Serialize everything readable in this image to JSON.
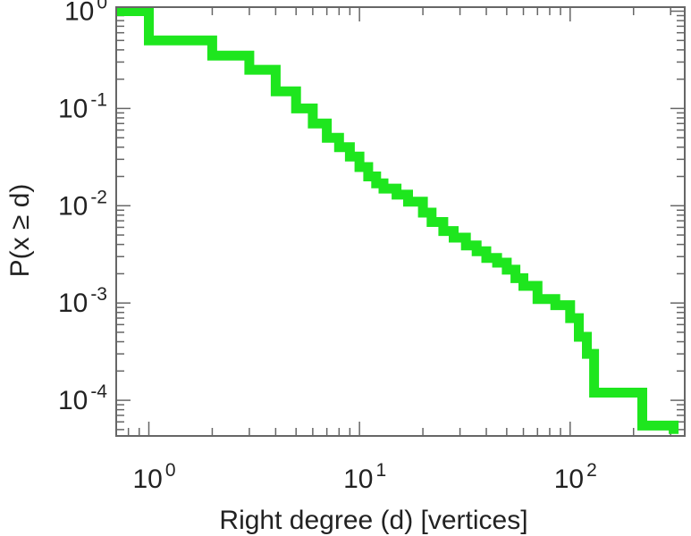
{
  "chart_data": {
    "type": "line",
    "subtype": "step-ccdf",
    "title": "",
    "xlabel": "Right degree (d) [vertices]",
    "ylabel": "P(x ≥ d)",
    "xscale": "log",
    "yscale": "log",
    "xlim": [
      0.7,
      350
    ],
    "ylim": [
      4.3e-05,
      1.1
    ],
    "xticks": [
      {
        "value": 1,
        "base": "10",
        "exp": "0"
      },
      {
        "value": 10,
        "base": "10",
        "exp": "1"
      },
      {
        "value": 100,
        "base": "10",
        "exp": "2"
      }
    ],
    "yticks": [
      {
        "value": 1,
        "base": "10",
        "exp": "0"
      },
      {
        "value": 0.1,
        "base": "10",
        "exp": "-1"
      },
      {
        "value": 0.01,
        "base": "10",
        "exp": "-2"
      },
      {
        "value": 0.001,
        "base": "10",
        "exp": "-3"
      },
      {
        "value": 0.0001,
        "base": "10",
        "exp": "-4"
      }
    ],
    "grid": false,
    "series": [
      {
        "name": "ccdf",
        "color": "#1ee61e",
        "x": [
          0.7,
          1,
          2,
          3,
          4,
          5,
          6,
          7,
          8,
          9,
          10,
          11,
          12,
          13,
          15,
          17,
          20,
          22,
          25,
          28,
          32,
          36,
          40,
          45,
          50,
          55,
          60,
          70,
          85,
          100,
          110,
          120,
          130,
          220,
          310
        ],
        "y": [
          1.0,
          0.5,
          0.35,
          0.25,
          0.15,
          0.1,
          0.07,
          0.05,
          0.04,
          0.032,
          0.025,
          0.02,
          0.017,
          0.015,
          0.013,
          0.011,
          0.0085,
          0.0068,
          0.0055,
          0.0047,
          0.0039,
          0.0034,
          0.0029,
          0.0026,
          0.0022,
          0.0018,
          0.0015,
          0.0011,
          0.00095,
          0.0007,
          0.00045,
          0.0003,
          0.00012,
          5.5e-05,
          4.5e-05
        ]
      }
    ]
  }
}
